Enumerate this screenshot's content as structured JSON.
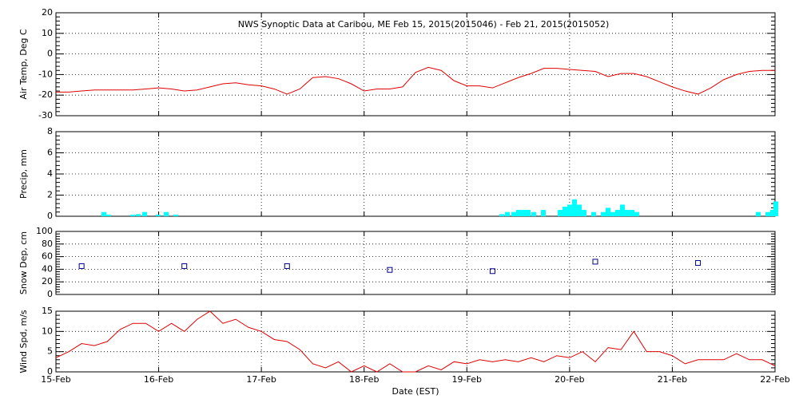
{
  "chart_data": [
    {
      "type": "line",
      "title": "NWS Synoptic Data at Caribou, ME   Feb 15, 2015(2015046) - Feb 21, 2015(2015052)",
      "ylabel": "Air Temp, Deg C",
      "xlim": [
        0,
        7
      ],
      "ylim": [
        -30,
        20
      ],
      "yticks": [
        -30,
        -20,
        -10,
        0,
        10,
        20
      ],
      "grid": true,
      "series": [
        {
          "color": "#e00000",
          "x": [
            0,
            0.125,
            0.25,
            0.375,
            0.5,
            0.625,
            0.75,
            0.875,
            1,
            1.125,
            1.25,
            1.375,
            1.5,
            1.625,
            1.75,
            1.875,
            2,
            2.125,
            2.25,
            2.375,
            2.5,
            2.625,
            2.75,
            2.875,
            3,
            3.125,
            3.25,
            3.375,
            3.5,
            3.625,
            3.75,
            3.875,
            4,
            4.125,
            4.25,
            4.375,
            4.5,
            4.625,
            4.75,
            4.875,
            5,
            5.125,
            5.25,
            5.375,
            5.5,
            5.625,
            5.75,
            5.875,
            6,
            6.125,
            6.25,
            6.375,
            6.5,
            6.625,
            6.75,
            6.875,
            7
          ],
          "values": [
            -18.5,
            -18.5,
            -18,
            -17.5,
            -17.5,
            -17.5,
            -17.5,
            -17,
            -16.5,
            -17,
            -18,
            -17.5,
            -16,
            -14.5,
            -14,
            -15,
            -15.5,
            -17,
            -19.5,
            -17,
            -11.5,
            -11,
            -12,
            -14.5,
            -18,
            -17,
            -17,
            -16,
            -9,
            -6.5,
            -8,
            -13,
            -15.5,
            -15.5,
            -16.5,
            -14,
            -11.5,
            -9.5,
            -7,
            -7,
            -7.5,
            -8,
            -8.5,
            -11,
            -9.5,
            -9.5,
            -11,
            -13.5,
            -16,
            -18,
            -19.5,
            -16.5,
            -12.5,
            -10,
            -8.5,
            -8,
            -8
          ]
        }
      ]
    },
    {
      "type": "bar",
      "ylabel": "Precip, mm",
      "xlim": [
        0,
        7
      ],
      "ylim": [
        0,
        8
      ],
      "yticks": [
        0,
        2,
        4,
        6,
        8
      ],
      "grid": true,
      "series": [
        {
          "color": "#00ffff",
          "x": [
            0.443,
            0.49,
            0.723,
            0.778,
            0.84,
            0.972,
            1.05,
            1.143,
            4.317,
            4.371,
            4.433,
            4.48,
            4.527,
            4.573,
            4.628,
            4.721,
            4.884,
            4.931,
            4.978,
            5.024,
            5.071,
            5.118,
            5.211,
            5.304,
            5.351,
            5.398,
            5.444,
            5.491,
            5.538,
            5.584,
            5.631,
            6.813,
            6.907,
            6.953,
            6.984
          ],
          "values": [
            0.4,
            0.15,
            0.15,
            0.2,
            0.4,
            0.15,
            0.4,
            0.15,
            0.2,
            0.4,
            0.4,
            0.6,
            0.6,
            0.6,
            0.4,
            0.6,
            0.6,
            0.9,
            1.1,
            1.6,
            1.1,
            0.6,
            0.4,
            0.4,
            0.8,
            0.4,
            0.6,
            1.1,
            0.6,
            0.6,
            0.4,
            0.4,
            0.4,
            0.6,
            1.4
          ]
        }
      ]
    },
    {
      "type": "scatter",
      "ylabel": "Snow Dep, cm",
      "xlim": [
        0,
        7
      ],
      "ylim": [
        0,
        100
      ],
      "yticks": [
        0,
        20,
        40,
        60,
        80,
        100
      ],
      "grid": true,
      "series": [
        {
          "color": "#00008b",
          "x": [
            0.25,
            1.25,
            2.25,
            3.25,
            4.25,
            5.25,
            6.25
          ],
          "values": [
            45,
            45,
            45,
            39,
            37,
            52,
            50
          ]
        }
      ]
    },
    {
      "type": "line",
      "ylabel": "Wind Spd, m/s",
      "xlabel": "Date (EST)",
      "xlim": [
        0,
        7
      ],
      "ylim": [
        0,
        15
      ],
      "yticks": [
        0,
        5,
        10,
        15
      ],
      "grid": true,
      "xticks": [
        {
          "value": 0,
          "label": "15-Feb"
        },
        {
          "value": 1,
          "label": "16-Feb"
        },
        {
          "value": 2,
          "label": "17-Feb"
        },
        {
          "value": 3,
          "label": "18-Feb"
        },
        {
          "value": 4,
          "label": "19-Feb"
        },
        {
          "value": 5,
          "label": "20-Feb"
        },
        {
          "value": 6,
          "label": "21-Feb"
        },
        {
          "value": 7,
          "label": "22-Feb"
        }
      ],
      "series": [
        {
          "color": "#e00000",
          "x": [
            0,
            0.125,
            0.25,
            0.375,
            0.5,
            0.625,
            0.75,
            0.875,
            1,
            1.125,
            1.25,
            1.375,
            1.5,
            1.625,
            1.75,
            1.875,
            2,
            2.125,
            2.25,
            2.375,
            2.5,
            2.625,
            2.75,
            2.875,
            3,
            3.125,
            3.25,
            3.375,
            3.5,
            3.625,
            3.75,
            3.875,
            4,
            4.125,
            4.25,
            4.375,
            4.5,
            4.625,
            4.75,
            4.875,
            5,
            5.125,
            5.25,
            5.375,
            5.5,
            5.625,
            5.75,
            5.875,
            6,
            6.125,
            6.25,
            6.375,
            6.5,
            6.625,
            6.75,
            6.875,
            7
          ],
          "values": [
            3.5,
            5,
            7,
            6.5,
            7.5,
            10.5,
            12,
            12,
            10,
            12,
            10,
            13,
            15,
            12,
            13,
            11,
            10,
            8,
            7.5,
            5.5,
            2,
            1,
            2.5,
            0,
            1.5,
            0,
            2,
            0,
            0,
            1.5,
            0.5,
            2.5,
            2,
            3,
            2.5,
            3,
            2.5,
            3.5,
            2.5,
            4,
            3.5,
            5,
            2.5,
            6,
            5.5,
            10,
            5,
            5,
            4,
            2,
            3,
            3,
            3,
            4.5,
            3,
            3,
            1.5
          ]
        }
      ]
    }
  ]
}
